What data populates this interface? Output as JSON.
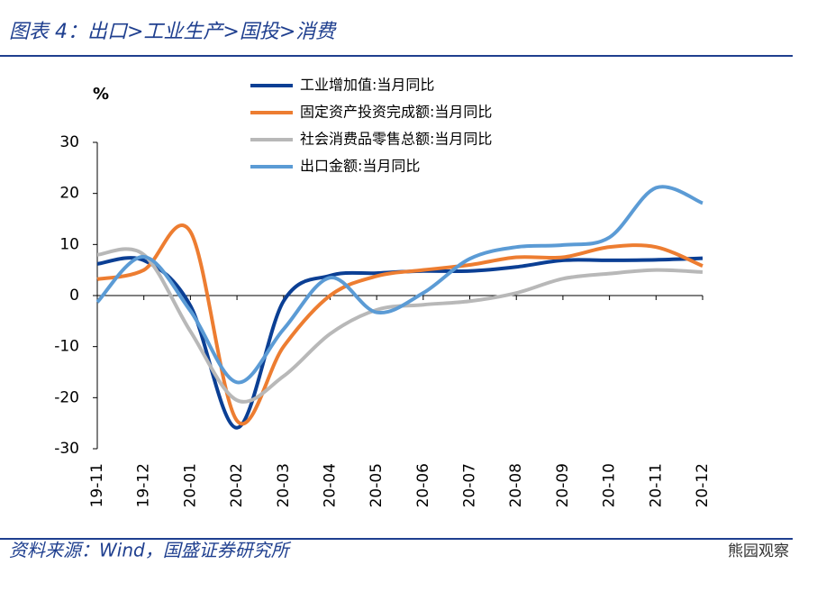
{
  "header": {
    "title": "图表 4：出口>工业生产>国投>消费"
  },
  "chart_data": {
    "type": "line",
    "y_label": "%",
    "categories": [
      "19-11",
      "19-12",
      "20-01",
      "20-02",
      "20-03",
      "20-04",
      "20-05",
      "20-06",
      "20-07",
      "20-08",
      "20-09",
      "20-10",
      "20-11",
      "20-12"
    ],
    "series": [
      {
        "name": "工业增加值:当月同比",
        "color": "#0b3f94",
        "values": [
          6.2,
          6.9,
          -2,
          -25.9,
          -1.1,
          3.9,
          4.4,
          4.8,
          4.8,
          5.6,
          6.9,
          6.9,
          7.0,
          7.3
        ]
      },
      {
        "name": "固定资产投资完成额:当月同比",
        "color": "#ed7d31",
        "values": [
          3.2,
          5.0,
          12.5,
          -24.5,
          -10,
          0,
          3.8,
          5,
          6,
          7.5,
          7.5,
          9.5,
          9.5,
          5.8
        ]
      },
      {
        "name": "社会消费品零售总额:当月同比",
        "color": "#b8b8b8",
        "values": [
          8.0,
          8.0,
          -7,
          -20.5,
          -15.8,
          -7.5,
          -2.8,
          -1.8,
          -1.1,
          0.5,
          3.3,
          4.3,
          5.0,
          4.6
        ]
      },
      {
        "name": "出口金额:当月同比",
        "color": "#5b9bd5",
        "values": [
          -1.3,
          7.6,
          -3,
          -17,
          -6.6,
          3.5,
          -3.3,
          0.5,
          7.2,
          9.5,
          9.9,
          11.4,
          21.1,
          18.1
        ]
      }
    ],
    "ylim": [
      -30,
      30
    ],
    "yticks": [
      -30,
      -20,
      -10,
      0,
      10,
      20,
      30
    ],
    "legend": "top"
  },
  "footer": {
    "source": "资料来源：Wind，国盛证券研究所",
    "watermark": "熊园观察"
  }
}
